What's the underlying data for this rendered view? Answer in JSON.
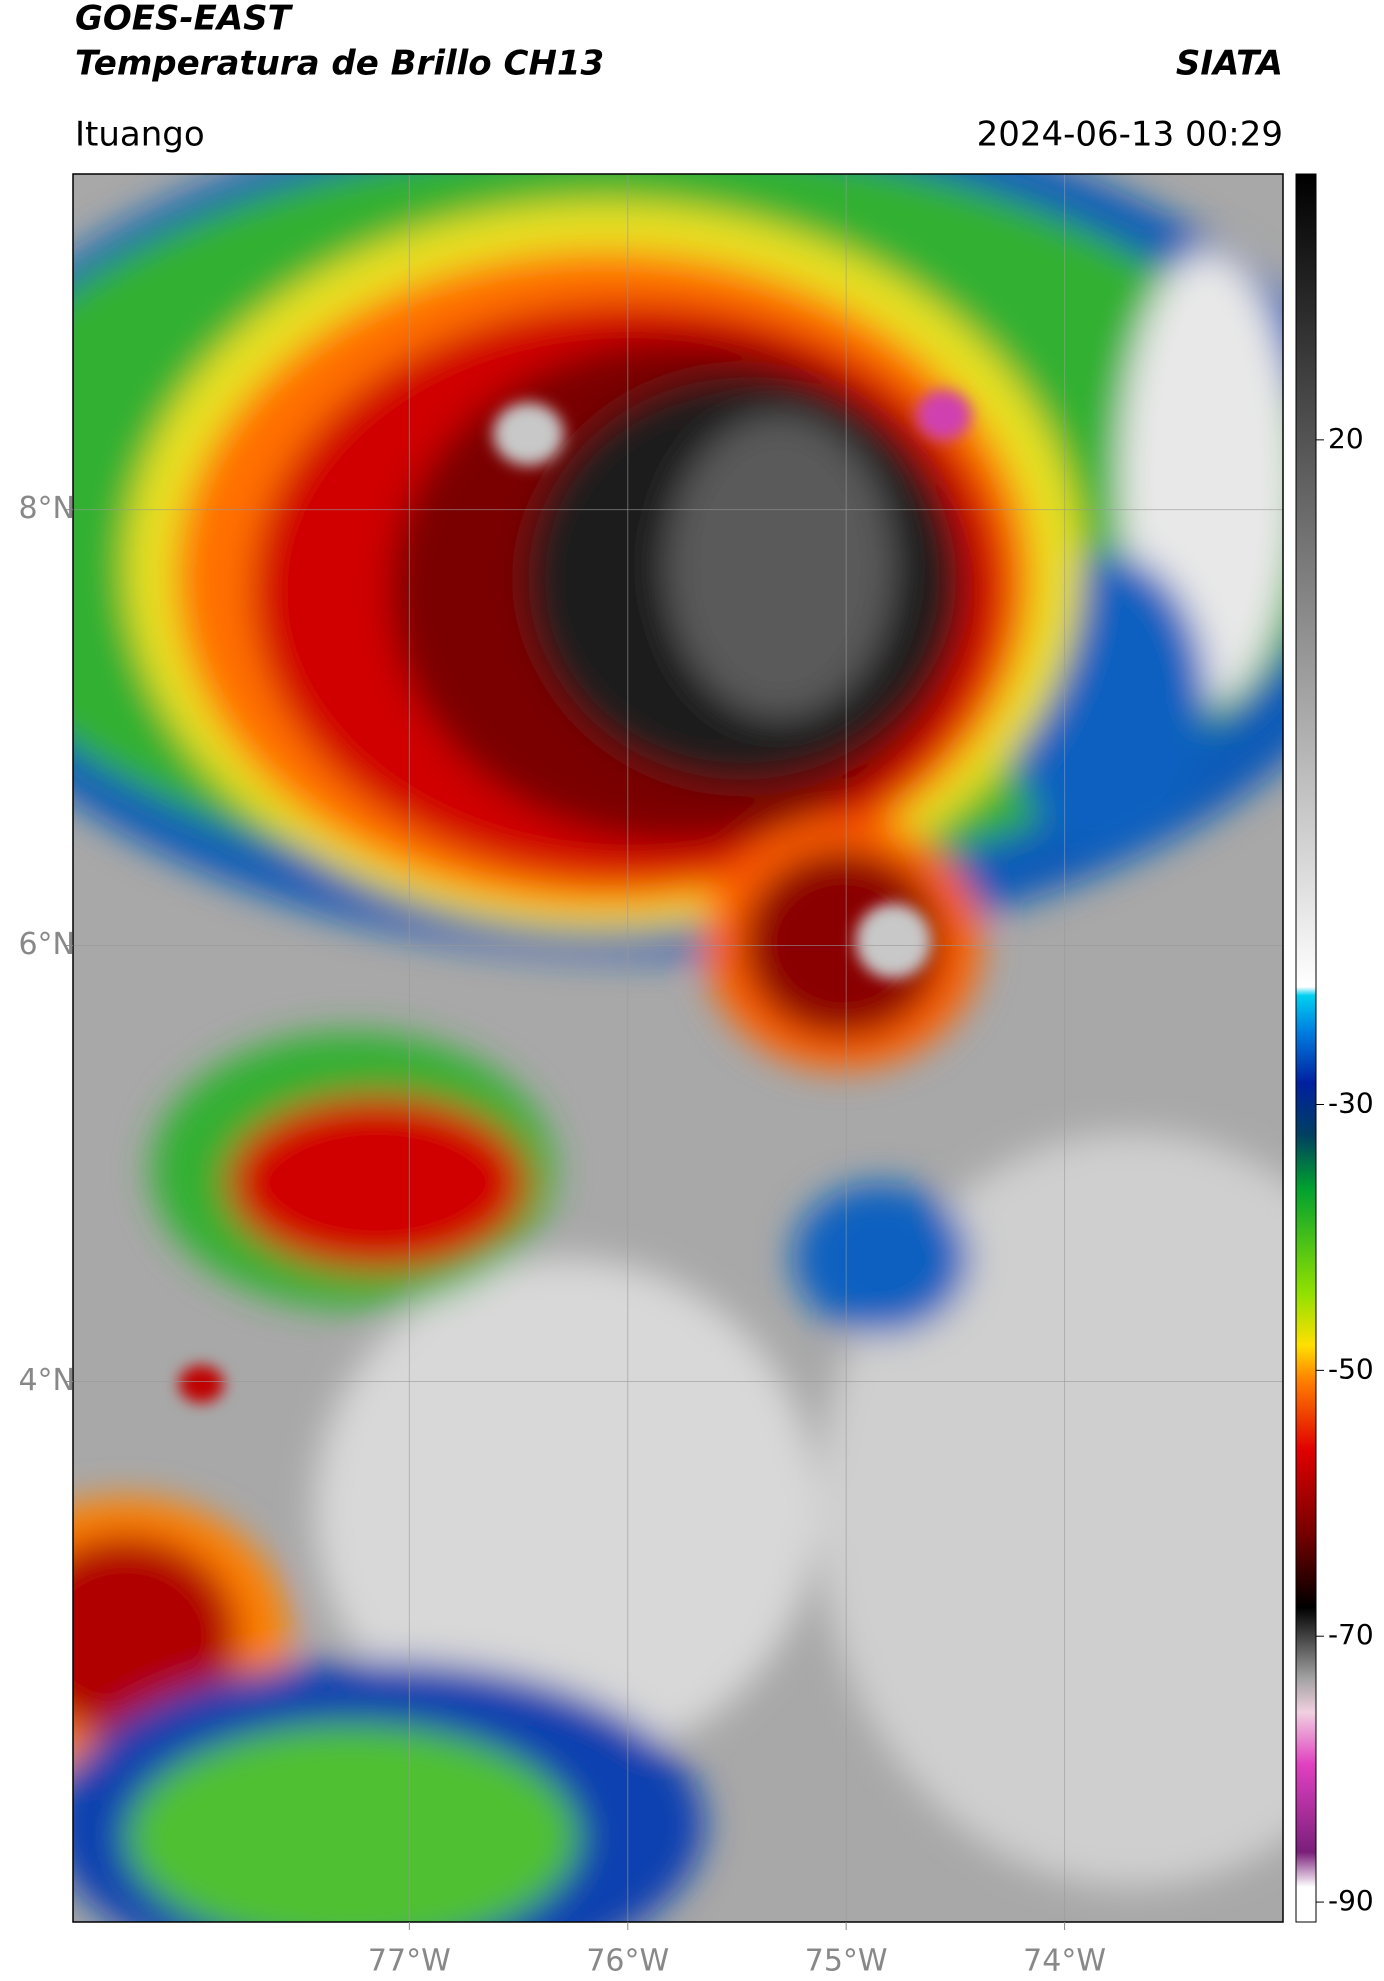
{
  "header": {
    "title": "GOES-EAST",
    "subtitle": "Temperatura de Brillo CH13",
    "agency": "SIATA",
    "location": "Ituango",
    "datetime": "2024-06-13 00:29"
  },
  "map": {
    "xlim": [
      -78.54,
      -73.0
    ],
    "ylim": [
      1.52,
      9.54
    ],
    "xticks": [
      {
        "value": -77,
        "label": "77°W"
      },
      {
        "value": -76,
        "label": "76°W"
      },
      {
        "value": -75,
        "label": "75°W"
      },
      {
        "value": -74,
        "label": "74°W"
      }
    ],
    "yticks": [
      {
        "value": 8,
        "label": "8°N"
      },
      {
        "value": 6,
        "label": "6°N"
      },
      {
        "value": 4,
        "label": "4°N"
      }
    ],
    "grid": true
  },
  "colorbar": {
    "clim": [
      -91.5,
      40
    ],
    "ticks": [
      20,
      -30,
      -50,
      -70,
      -90
    ]
  }
}
